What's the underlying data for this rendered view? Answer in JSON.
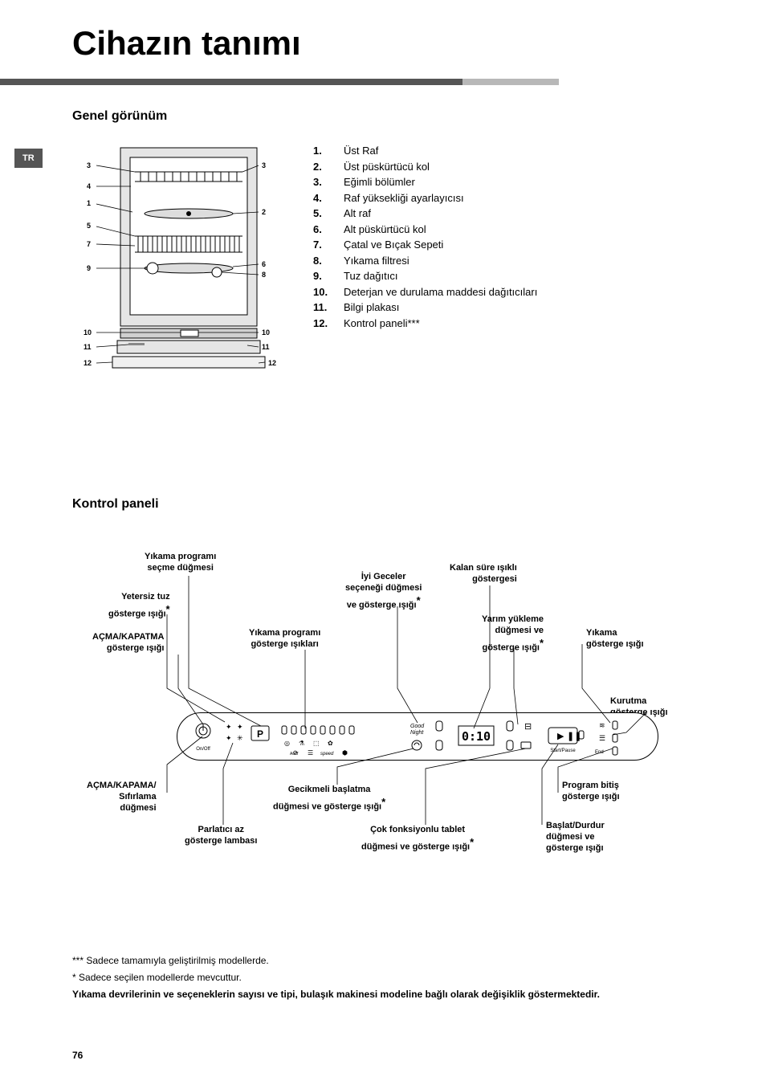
{
  "title": "Cihazın tanımı",
  "lang_tab": "TR",
  "section_overview": "Genel görünüm",
  "section_control": "Kontrol paneli",
  "parts": [
    {
      "n": "1.",
      "label": "Üst Raf"
    },
    {
      "n": "2.",
      "label": "Üst püskürtücü kol"
    },
    {
      "n": "3.",
      "label": "Eğimli bölümler"
    },
    {
      "n": "4.",
      "label": "Raf yüksekliği ayarlayıcısı"
    },
    {
      "n": "5.",
      "label": "Alt raf"
    },
    {
      "n": "6.",
      "label": "Alt püskürtücü kol"
    },
    {
      "n": "7.",
      "label": "Çatal ve Bıçak Sepeti"
    },
    {
      "n": "8.",
      "label": "Yıkama filtresi"
    },
    {
      "n": "9.",
      "label": "Tuz dağıtıcı"
    },
    {
      "n": "10.",
      "label": "Deterjan ve durulama maddesi dağıtıcıları"
    },
    {
      "n": "11.",
      "label": "Bilgi plakası"
    },
    {
      "n": "12.",
      "label": "Kontrol paneli***"
    }
  ],
  "panel_labels": {
    "program_select": "Yıkama programı\nseçme düğmesi",
    "low_salt": "Yetersiz tuz\ngösterge ışığı",
    "on_off_light": "AÇMA/KAPATMA\ngösterge ışığı",
    "on_off_reset": "AÇMA/KAPAMA/\nSıfırlama\ndüğmesi",
    "rinse_low": "Parlatıcı az\ngösterge lambası",
    "good_night": "İyi Geceler\nseçeneği düğmesi\nve gösterge ışığı",
    "program_lights": "Yıkama programı\ngösterge ışıkları",
    "delayed_start": "Gecikmeli başlatma\ndüğmesi ve gösterge ışığı",
    "multi_tablet": "Çok fonksiyonlu tablet\ndüğmesi ve gösterge ışığı",
    "time_remaining": "Kalan süre ışıklı\ngöstergesi",
    "half_load": "Yarım yükleme\ndüğmesi ve\ngösterge ışığı",
    "start_pause": "Başlat/Durdur\ndüğmesi ve\ngösterge ışığı",
    "wash_light": "Yıkama\ngösterge ışığı",
    "dry_light": "Kurutma\ngösterge ışığı",
    "end_light": "Program bitiş\ngösterge ışığı"
  },
  "panel_device": {
    "display": "0:10",
    "on_off": "On/Off",
    "start_pause_btn": "Start/Pause",
    "p_btn": "P",
    "auto": "Auto",
    "end": "End",
    "good_night_icon": "Good Night",
    "speed": "speed"
  },
  "footnotes": {
    "f1": "Sadece tamamıyla geliştirilmiş modellerde.",
    "f2": "Sadece seçilen modellerde mevcuttur.",
    "f3": "Yıkama devrilerinin ve seçeneklerin sayısı ve tipi, bulaşık makinesi modeline bağlı olarak değişiklik göstermektedir."
  },
  "page_number": "76",
  "colors": {
    "bar_dark": "#555555",
    "bar_light": "#b8b8b8",
    "text": "#000000",
    "bg": "#ffffff"
  }
}
